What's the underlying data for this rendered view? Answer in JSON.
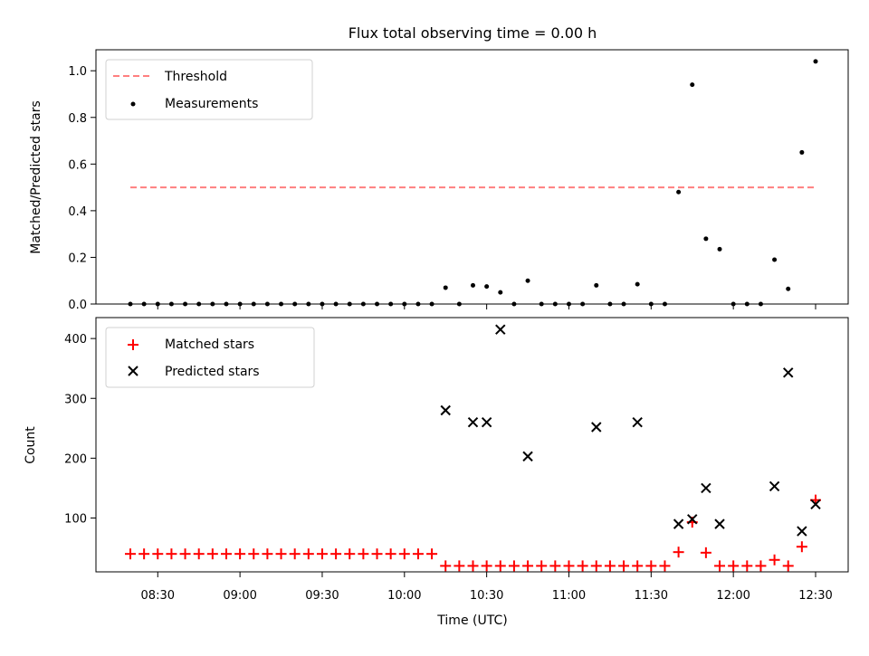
{
  "chart_data": {
    "title": "Flux total observing time = 0.00 h",
    "xlabel": "Time (UTC)",
    "x_times": [
      "08:20",
      "08:25",
      "08:30",
      "08:35",
      "08:40",
      "08:45",
      "08:50",
      "08:55",
      "09:00",
      "09:05",
      "09:10",
      "09:15",
      "09:20",
      "09:25",
      "09:30",
      "09:35",
      "09:40",
      "09:45",
      "09:50",
      "09:55",
      "10:00",
      "10:05",
      "10:10",
      "10:15",
      "10:20",
      "10:25",
      "10:30",
      "10:35",
      "10:40",
      "10:45",
      "10:50",
      "10:55",
      "11:00",
      "11:05",
      "11:10",
      "11:15",
      "11:20",
      "11:25",
      "11:30",
      "11:35",
      "11:40",
      "11:45",
      "11:50",
      "11:55",
      "12:00",
      "12:05",
      "12:10",
      "12:15",
      "12:20",
      "12:25",
      "12:30"
    ],
    "x_ticks": [
      "08:30",
      "09:00",
      "09:30",
      "10:00",
      "10:30",
      "11:00",
      "11:30",
      "12:00",
      "12:30"
    ],
    "panels": [
      {
        "type": "scatter",
        "ylabel": "Matched/Predicted stars",
        "ylim": [
          0,
          1.09
        ],
        "yticks": [
          "0.0",
          "0.2",
          "0.4",
          "0.6",
          "0.8",
          "1.0"
        ],
        "legend_position": "upper-left",
        "threshold": {
          "name": "Threshold",
          "value": 0.5,
          "color": "#ff7f7f"
        },
        "series": [
          {
            "name": "Measurements",
            "color": "#000000",
            "values": [
              0,
              0,
              0,
              0,
              0,
              0,
              0,
              0,
              0,
              0,
              0,
              0,
              0,
              0,
              0,
              0,
              0,
              0,
              0,
              0,
              0,
              0,
              0,
              0.07,
              0,
              0.08,
              0.075,
              0.05,
              0,
              0.1,
              0,
              0,
              0,
              0,
              0.08,
              0,
              0,
              0.085,
              0,
              0,
              0.48,
              0.94,
              0.28,
              0.235,
              0,
              0,
              0,
              0.19,
              0.065,
              0.65,
              1.04
            ]
          }
        ]
      },
      {
        "type": "scatter",
        "ylabel": "Count",
        "ylim": [
          10,
          435
        ],
        "yticks": [
          "100",
          "200",
          "300",
          "400"
        ],
        "legend_position": "upper-left",
        "series": [
          {
            "name": "Matched stars",
            "color": "#ff0000",
            "marker": "+",
            "values": [
              40,
              40,
              40,
              40,
              40,
              40,
              40,
              40,
              40,
              40,
              40,
              40,
              40,
              40,
              40,
              40,
              40,
              40,
              40,
              40,
              40,
              40,
              40,
              20,
              20,
              20,
              20,
              20,
              20,
              20,
              20,
              20,
              20,
              20,
              20,
              20,
              20,
              20,
              20,
              20,
              43,
              93,
              42,
              20,
              20,
              20,
              20,
              30,
              20,
              52,
              130
            ]
          },
          {
            "name": "Predicted stars",
            "color": "#000000",
            "marker": "x",
            "x": [
              "10:15",
              "10:25",
              "10:30",
              "10:35",
              "10:45",
              "11:10",
              "11:25",
              "11:40",
              "11:45",
              "11:50",
              "11:55",
              "12:15",
              "12:20",
              "12:25",
              "12:30"
            ],
            "values": [
              280,
              260,
              260,
              415,
              203,
              252,
              260,
              90,
              98,
              150,
              90,
              153,
              343,
              78,
              123
            ]
          }
        ]
      }
    ]
  }
}
